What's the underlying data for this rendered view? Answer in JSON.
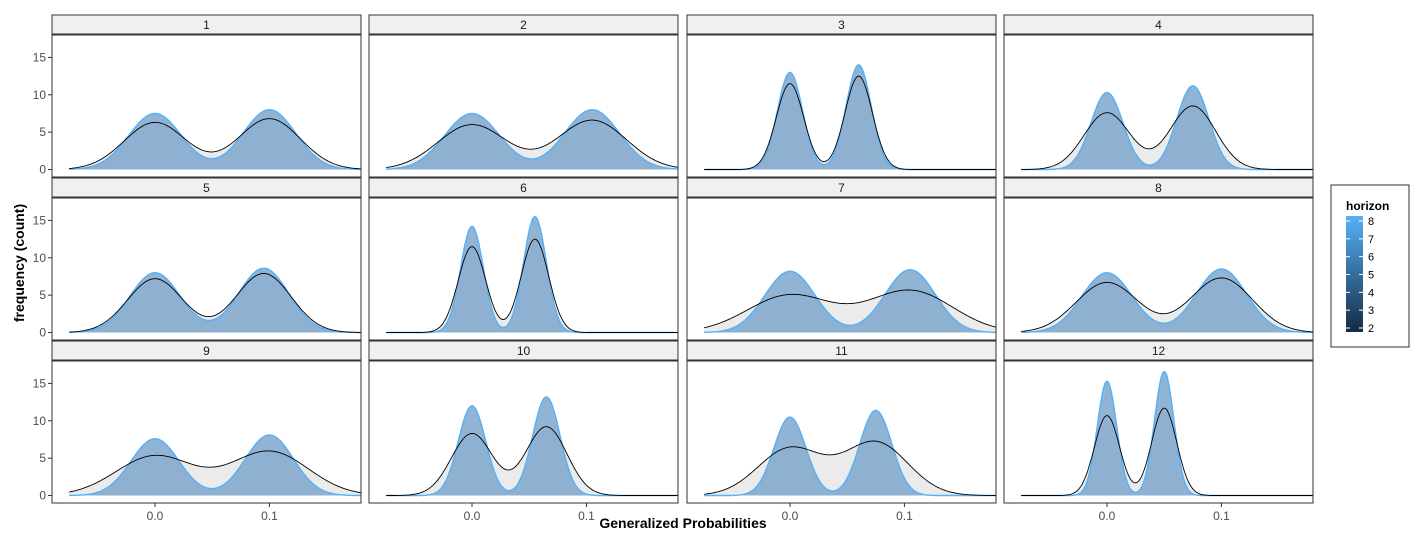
{
  "chart_data": {
    "type": "area",
    "xlabel": "Generalized Probabilities",
    "ylabel": "frequency (count)",
    "x_range": [
      -0.09,
      0.18
    ],
    "ylim": [
      -1,
      18
    ],
    "x_ticks": [
      0.0,
      0.1
    ],
    "x_tick_labels": [
      "0.0",
      "0.1"
    ],
    "y_ticks": [
      0,
      5,
      10,
      15
    ],
    "y_tick_labels": [
      "0",
      "5",
      "10",
      "15"
    ],
    "grid": false,
    "colors": {
      "fill": "#7ea6cc",
      "outline": "#56B1F7",
      "overlay_fill": "#ebebeb",
      "overlay_line": "#000000",
      "strip_bg": "#f0f0f0",
      "panel_border": "#333333",
      "gradient_low": "#132B43",
      "gradient_high": "#56B1F7"
    },
    "legend": {
      "title": "horizon",
      "position": "right",
      "labels": [
        "8",
        "7",
        "6",
        "5",
        "4",
        "3",
        "2"
      ]
    },
    "panels": [
      {
        "label": "1",
        "peaks": [
          0.0,
          0.1
        ],
        "blue_heights": [
          7.5,
          8.0
        ],
        "blue_sd": 0.023,
        "black_heights": [
          6.3,
          6.8
        ],
        "black_sd": 0.027,
        "range": [
          -0.075,
          0.18
        ]
      },
      {
        "label": "2",
        "peaks": [
          0.0,
          0.105
        ],
        "blue_heights": [
          7.5,
          8.0
        ],
        "blue_sd": 0.024,
        "black_heights": [
          6.0,
          6.6
        ],
        "black_sd": 0.03,
        "range": [
          -0.075,
          0.18
        ]
      },
      {
        "label": "3",
        "peaks": [
          0.0,
          0.06
        ],
        "blue_heights": [
          13.0,
          14.0
        ],
        "blue_sd": 0.011,
        "black_heights": [
          11.5,
          12.5
        ],
        "black_sd": 0.012,
        "range": [
          -0.075,
          0.18
        ]
      },
      {
        "label": "4",
        "peaks": [
          0.0,
          0.075
        ],
        "blue_heights": [
          10.3,
          11.2
        ],
        "blue_sd": 0.014,
        "black_heights": [
          7.6,
          8.5
        ],
        "black_sd": 0.02,
        "range": [
          -0.075,
          0.18
        ]
      },
      {
        "label": "5",
        "peaks": [
          0.0,
          0.095
        ],
        "blue_heights": [
          8.0,
          8.6
        ],
        "blue_sd": 0.022,
        "black_heights": [
          7.2,
          7.9
        ],
        "black_sd": 0.024,
        "range": [
          -0.075,
          0.18
        ]
      },
      {
        "label": "6",
        "peaks": [
          0.0,
          0.055
        ],
        "blue_heights": [
          14.2,
          15.5
        ],
        "blue_sd": 0.01,
        "black_heights": [
          11.5,
          12.5
        ],
        "black_sd": 0.012,
        "range": [
          -0.075,
          0.18
        ]
      },
      {
        "label": "7",
        "peaks": [
          0.0,
          0.105
        ],
        "blue_heights": [
          8.2,
          8.4
        ],
        "blue_sd": 0.022,
        "black_heights": [
          5.0,
          5.6
        ],
        "black_sd": 0.037,
        "range": [
          -0.075,
          0.18
        ]
      },
      {
        "label": "8",
        "peaks": [
          0.0,
          0.1
        ],
        "blue_heights": [
          8.0,
          8.5
        ],
        "blue_sd": 0.022,
        "black_heights": [
          6.7,
          7.3
        ],
        "black_sd": 0.027,
        "range": [
          -0.075,
          0.18
        ]
      },
      {
        "label": "9",
        "peaks": [
          0.0,
          0.1
        ],
        "blue_heights": [
          7.6,
          8.1
        ],
        "blue_sd": 0.021,
        "black_heights": [
          5.3,
          5.9
        ],
        "black_sd": 0.034,
        "range": [
          -0.075,
          0.18
        ]
      },
      {
        "label": "10",
        "peaks": [
          0.0,
          0.065
        ],
        "blue_heights": [
          12.0,
          13.2
        ],
        "blue_sd": 0.012,
        "black_heights": [
          8.3,
          9.2
        ],
        "black_sd": 0.018,
        "range": [
          -0.075,
          0.18
        ]
      },
      {
        "label": "11",
        "peaks": [
          0.0,
          0.075
        ],
        "blue_heights": [
          10.5,
          11.4
        ],
        "blue_sd": 0.014,
        "black_heights": [
          6.3,
          7.1
        ],
        "black_sd": 0.028,
        "range": [
          -0.075,
          0.18
        ]
      },
      {
        "label": "12",
        "peaks": [
          0.0,
          0.05
        ],
        "blue_heights": [
          15.3,
          16.6
        ],
        "blue_sd": 0.0085,
        "black_heights": [
          10.7,
          11.7
        ],
        "black_sd": 0.011,
        "range": [
          -0.075,
          0.18
        ]
      }
    ]
  }
}
